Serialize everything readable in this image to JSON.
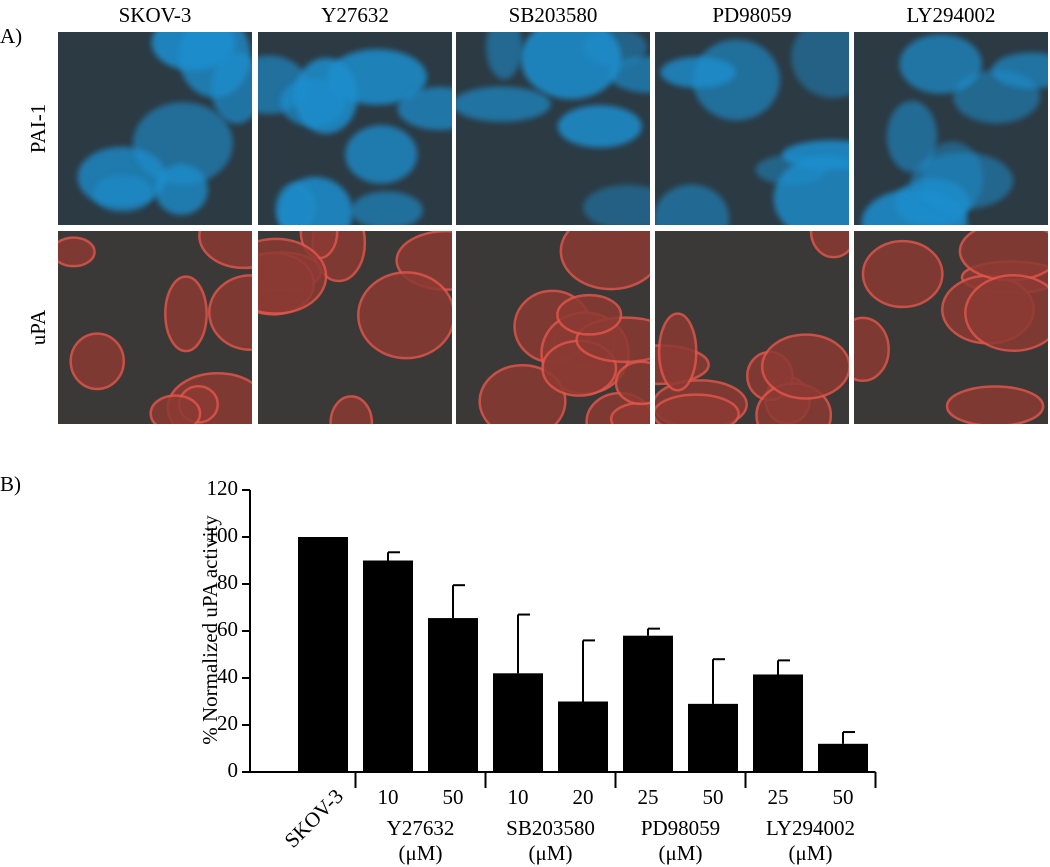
{
  "panel_a": {
    "label": "A)",
    "columns": [
      "SKOV-3",
      "Y27632",
      "SB203580",
      "PD98059",
      "LY294002"
    ],
    "rows": [
      "PAI-1",
      "uPA"
    ]
  },
  "chart_data": {
    "type": "bar",
    "panel_label": "B)",
    "y_label": "% Normalized uPA activity",
    "ylim": [
      0,
      120
    ],
    "yticks": [
      0,
      20,
      40,
      60,
      80,
      100,
      120
    ],
    "color": "#000000",
    "groups": [
      {
        "categories": [
          "SKOV-3"
        ],
        "values": [
          100
        ],
        "errors": [
          null
        ]
      },
      {
        "name": "Y27632",
        "unit": "(μM)",
        "categories": [
          "10",
          "50"
        ],
        "values": [
          90,
          65.5
        ],
        "errors": [
          3.5,
          14
        ]
      },
      {
        "name": "SB203580",
        "unit": "(μM)",
        "categories": [
          "10",
          "20"
        ],
        "values": [
          42,
          30
        ],
        "errors": [
          25,
          26
        ]
      },
      {
        "name": "PD98059",
        "unit": "(μM)",
        "categories": [
          "25",
          "50"
        ],
        "values": [
          58,
          29
        ],
        "errors": [
          3,
          19
        ]
      },
      {
        "name": "LY294002",
        "unit": "(μM)",
        "categories": [
          "25",
          "50"
        ],
        "values": [
          41.5,
          12
        ],
        "errors": [
          6,
          5
        ]
      }
    ]
  }
}
